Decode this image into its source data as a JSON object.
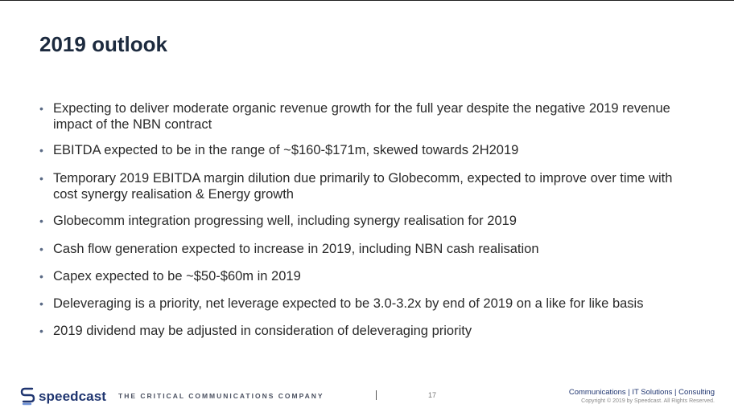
{
  "slide": {
    "title": "2019 outlook",
    "bullets": [
      "Expecting to deliver moderate organic revenue growth for the full year despite the negative 2019 revenue impact of the NBN contract",
      "EBITDA expected to be in the range of ~$160-$171m, skewed towards 2H2019",
      "Temporary 2019 EBITDA margin dilution due primarily to Globecomm, expected to improve over time with cost synergy realisation & Energy growth",
      "Globecomm integration progressing well, including synergy realisation for 2019",
      "Cash flow generation expected to increase in 2019, including NBN cash realisation",
      "Capex expected to be ~$50-$60m in 2019",
      "Deleveraging is a priority, net leverage expected to be 3.0-3.2x by end of 2019 on a like for like basis",
      "2019 dividend may be adjusted in consideration of deleveraging priority"
    ],
    "bullet_marker": "•"
  },
  "footer": {
    "logo_text": "speedcast",
    "tagline": "THE CRITICAL COMMUNICATIONS COMPANY",
    "page_number": "17",
    "services": "Communications | IT Solutions | Consulting",
    "copyright": "Copyright © 2019 by Speedcast. All Rights Reserved."
  },
  "colors": {
    "title": "#1c2a3e",
    "body_text": "#2a2a2a",
    "brand_blue": "#1f3570"
  }
}
